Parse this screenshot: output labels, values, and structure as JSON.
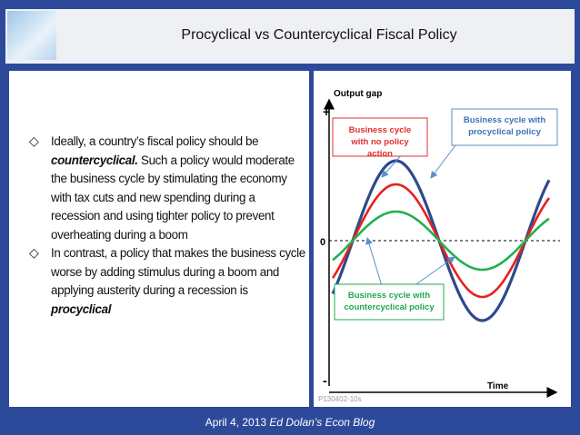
{
  "header": {
    "title": "Procyclical vs Countercyclical Fiscal Policy"
  },
  "bullets": [
    [
      "Ideally, a country’s fiscal policy should be ",
      "countercyclical.",
      " Such a policy would moderate the business cycle by stimulating the economy with tax cuts and new spending during a recession and using tighter policy to prevent overheating during a boom"
    ],
    [
      "In contrast, a policy that makes the business cycle worse by adding stimulus during a boom and applying austerity during a recession is ",
      "procyclical"
    ]
  ],
  "diagram": {
    "y_axis_label": "Output gap",
    "plus": "+",
    "zero": "0",
    "minus": "-",
    "x_axis_label": "Time",
    "code": "P130402-10s",
    "callouts": {
      "none": "Business cycle with no policy action",
      "pro": "Business cycle with procyclical policy",
      "counter": "Business cycle with countercyclical policy"
    }
  },
  "footer": {
    "date": "April 4, 2013 ",
    "blog": "Ed Dolan’s Econ Blog"
  }
}
